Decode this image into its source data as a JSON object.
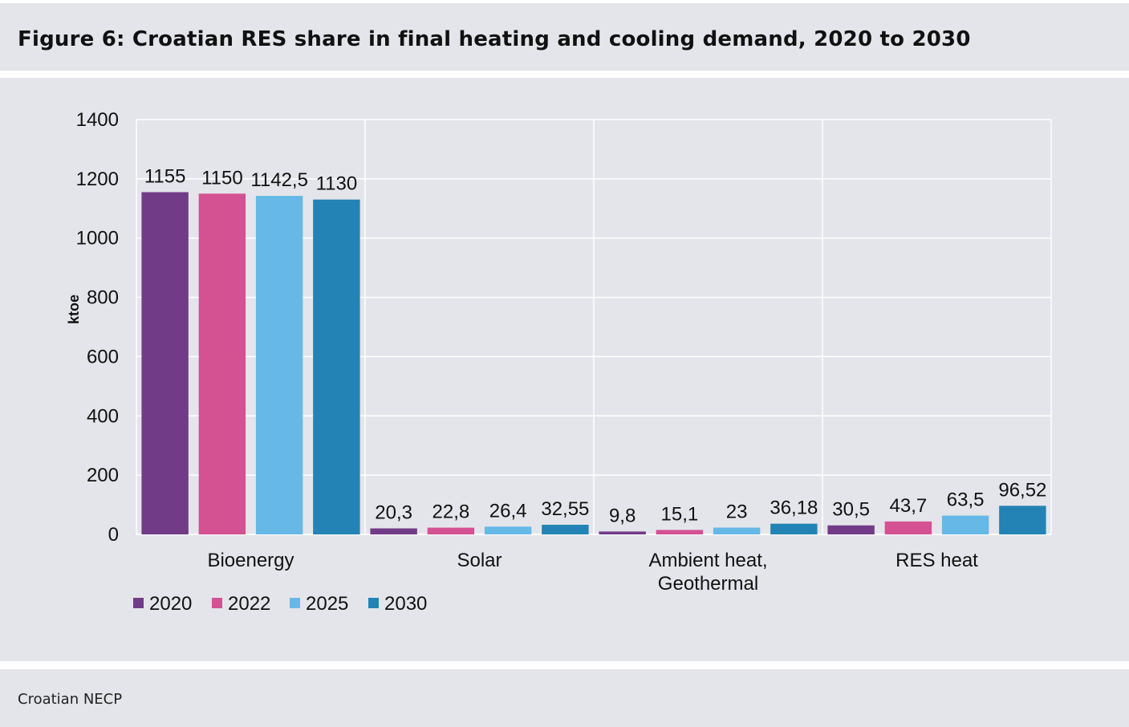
{
  "header": {
    "title": "Figure 6: Croatian RES share in final heating and cooling demand, 2020 to 2030"
  },
  "footer": {
    "source": "Croatian NECP"
  },
  "chart_data": {
    "type": "bar",
    "title": "",
    "xlabel": "",
    "ylabel": "ktoe",
    "ylim": [
      0,
      1400
    ],
    "yticks": [
      0,
      200,
      400,
      600,
      800,
      1000,
      1200,
      1400
    ],
    "grid": true,
    "legend_position": "bottom-left",
    "categories": [
      [
        "Bioenergy"
      ],
      [
        "Solar"
      ],
      [
        "Ambient heat,",
        "Geothermal"
      ],
      [
        "RES heat"
      ]
    ],
    "series": [
      {
        "name": "2020",
        "color": "#723b87",
        "values": [
          1155,
          20.3,
          9.8,
          30.5
        ],
        "labels": [
          "1155",
          "20,3",
          "9,8",
          "30,5"
        ]
      },
      {
        "name": "2022",
        "color": "#d45192",
        "values": [
          1150,
          22.8,
          15.1,
          43.7
        ],
        "labels": [
          "1150",
          "22,8",
          "15,1",
          "43,7"
        ]
      },
      {
        "name": "2025",
        "color": "#66b9e6",
        "values": [
          1142.5,
          26.4,
          23,
          63.5
        ],
        "labels": [
          "1142,5",
          "26,4",
          "23",
          "63,5"
        ]
      },
      {
        "name": "2030",
        "color": "#2283b4",
        "values": [
          1130,
          32.55,
          36.18,
          96.52
        ],
        "labels": [
          "1130",
          "32,55",
          "36,18",
          "96,52"
        ]
      }
    ]
  }
}
